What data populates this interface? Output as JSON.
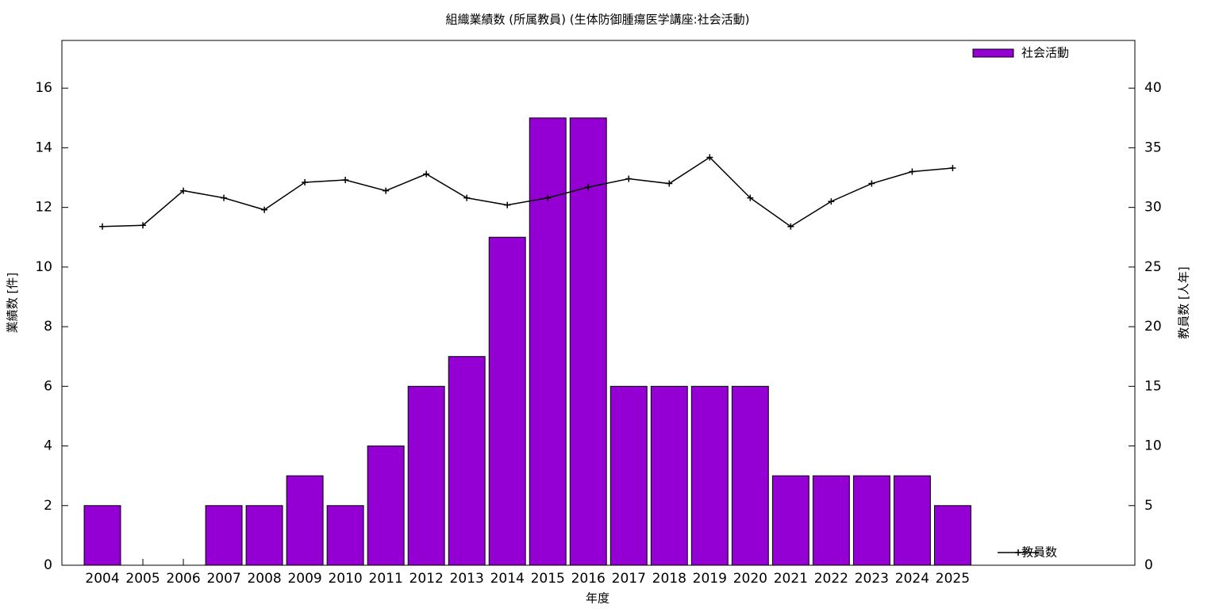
{
  "chart_data": {
    "type": "bar",
    "title": "組織業績数 (所属教員) (生体防御腫瘍医学講座:社会活動)",
    "xlabel": "年度",
    "ylabel": "業績数 [件]",
    "y2label": "教員数 [人年]",
    "categories": [
      "2004",
      "2005",
      "2006",
      "2007",
      "2008",
      "2009",
      "2010",
      "2011",
      "2012",
      "2013",
      "2014",
      "2015",
      "2016",
      "2017",
      "2018",
      "2019",
      "2020",
      "2021",
      "2022",
      "2023",
      "2024",
      "2025"
    ],
    "series": [
      {
        "name": "社会活動",
        "type": "bar",
        "color": "#9400d3",
        "legend": "top-right",
        "values": [
          2,
          0,
          0,
          2,
          2,
          3,
          2,
          4,
          6,
          7,
          11,
          15,
          15,
          6,
          6,
          6,
          6,
          3,
          3,
          3,
          3,
          2
        ]
      },
      {
        "name": "教員数",
        "type": "line",
        "axis": "y2",
        "color": "#000000",
        "legend": "bottom-right",
        "values": [
          28.4,
          28.5,
          31.4,
          30.8,
          29.8,
          32.1,
          32.3,
          31.4,
          32.8,
          30.8,
          30.2,
          30.8,
          31.7,
          32.4,
          32.0,
          34.2,
          30.8,
          28.4,
          30.5,
          32.0,
          33.0,
          33.3
        ]
      }
    ],
    "ylim": [
      0,
      17.6
    ],
    "yticks": [
      0,
      2,
      4,
      6,
      8,
      10,
      12,
      14,
      16
    ],
    "y2lim": [
      0,
      44
    ],
    "y2ticks": [
      0,
      5,
      10,
      15,
      20,
      25,
      30,
      35,
      40
    ]
  }
}
